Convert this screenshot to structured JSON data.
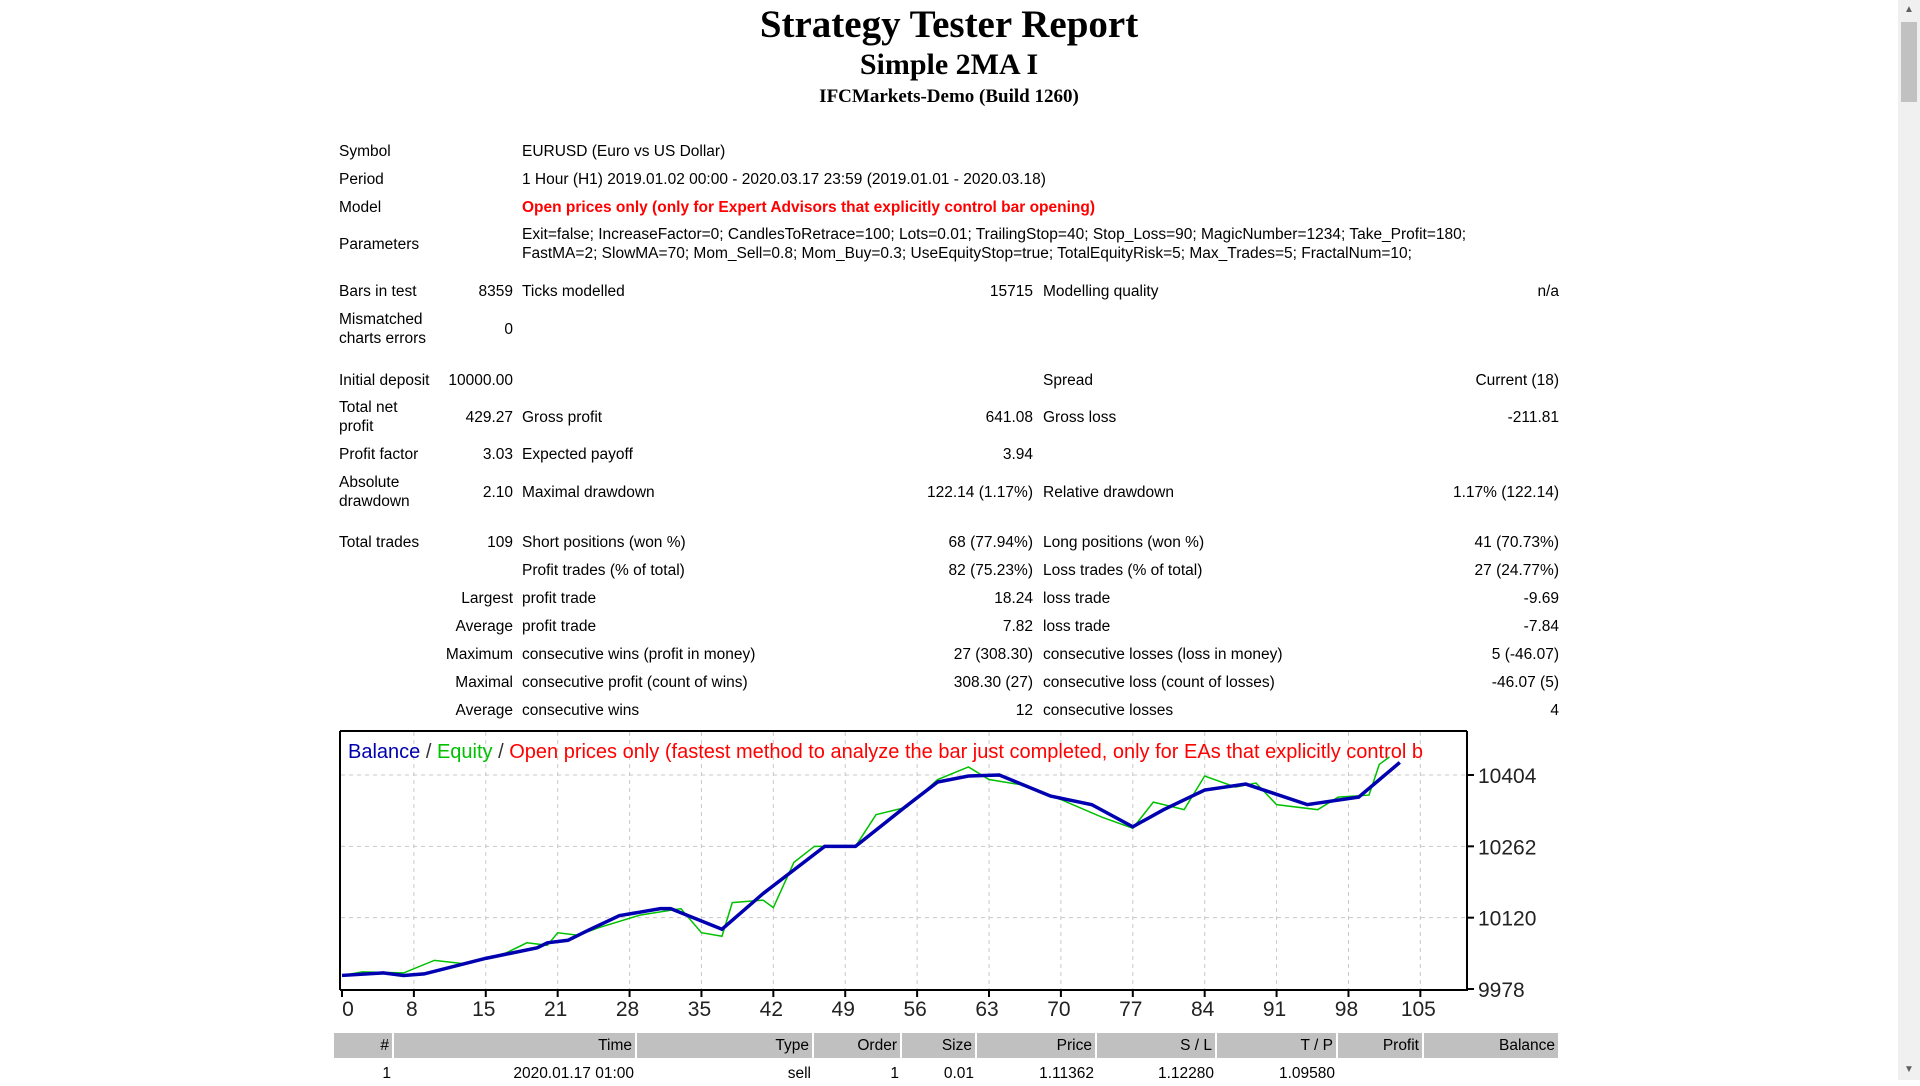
{
  "header": {
    "title": "Strategy Tester Report",
    "expert": "Simple 2MA I",
    "server": "IFCMarkets-Demo (Build 1260)"
  },
  "info": {
    "symbol_label": "Symbol",
    "symbol": "EURUSD (Euro vs US Dollar)",
    "period_label": "Period",
    "period": "1 Hour (H1) 2019.01.02 00:00 - 2020.03.17 23:59 (2019.01.01 - 2020.03.18)",
    "model_label": "Model",
    "model": "Open prices only (only for Expert Advisors that explicitly control bar opening)",
    "parameters_label": "Parameters",
    "parameters_line1": "Exit=false; IncreaseFactor=0; CandlesToRetrace=100; Lots=0.01; TrailingStop=40; Stop_Loss=90; MagicNumber=1234; Take_Profit=180;",
    "parameters_line2": "FastMA=2; SlowMA=70; Mom_Sell=0.8; Mom_Buy=0.3; UseEquityStop=true; TotalEquityRisk=5; Max_Trades=5; FractalNum=10;"
  },
  "stats": {
    "bars_label": "Bars in test",
    "bars": "8359",
    "ticks_label": "Ticks modelled",
    "ticks": "15715",
    "quality_label": "Modelling quality",
    "quality": "n/a",
    "mismatch_label1": "Mismatched",
    "mismatch_label2": "charts errors",
    "mismatch": "0",
    "deposit_label": "Initial deposit",
    "deposit": "10000.00",
    "spread_label": "Spread",
    "spread": "Current (18)",
    "net_label1": "Total net",
    "net_label2": "profit",
    "net": "429.27",
    "gross_profit_label": "Gross profit",
    "gross_profit": "641.08",
    "gross_loss_label": "Gross loss",
    "gross_loss": "-211.81",
    "pf_label": "Profit factor",
    "pf": "3.03",
    "payoff_label": "Expected payoff",
    "payoff": "3.94",
    "abs_dd_label1": "Absolute",
    "abs_dd_label2": "drawdown",
    "abs_dd": "2.10",
    "max_dd_label": "Maximal drawdown",
    "max_dd": "122.14 (1.17%)",
    "rel_dd_label": "Relative drawdown",
    "rel_dd": "1.17% (122.14)",
    "trades_label": "Total trades",
    "trades": "109",
    "short_label": "Short positions (won %)",
    "short": "68 (77.94%)",
    "long_label": "Long positions (won %)",
    "long": "41 (70.73%)",
    "profit_trades_label": "Profit trades (% of total)",
    "profit_trades": "82 (75.23%)",
    "loss_trades_label": "Loss trades (% of total)",
    "loss_trades": "27 (24.77%)",
    "largest_label": "Largest",
    "largest_profit_label": "profit trade",
    "largest_profit": "18.24",
    "largest_loss_label": "loss trade",
    "largest_loss": "-9.69",
    "average_label": "Average",
    "avg_profit_label": "profit trade",
    "avg_profit": "7.82",
    "avg_loss_label": "loss trade",
    "avg_loss": "-7.84",
    "maximum_label": "Maximum",
    "max_wins_label": "consecutive wins (profit in money)",
    "max_wins": "27 (308.30)",
    "max_losses_label": "consecutive losses (loss in money)",
    "max_losses": "5 (-46.07)",
    "maximal_label": "Maximal",
    "maximal_profit_label": "consecutive profit (count of wins)",
    "maximal_profit": "308.30 (27)",
    "maximal_loss_label": "consecutive loss (count of losses)",
    "maximal_loss": "-46.07 (5)",
    "average2_label": "Average",
    "avg_wins_label": "consecutive wins",
    "avg_wins": "12",
    "avg_losses_label": "consecutive losses",
    "avg_losses": "4"
  },
  "chart_data": {
    "type": "line",
    "legend": {
      "balance": "Balance",
      "sep": " / ",
      "equity": "Equity",
      "model": "Open prices only (fastest method to analyze the bar just completed, only for EAs that explicitly control b"
    },
    "colors": {
      "balance": "#0000b0",
      "equity": "#00c000",
      "model": "#ff0000",
      "grid": "#c8c8c8"
    },
    "x_ticks": [
      "0",
      "8",
      "15",
      "21",
      "28",
      "35",
      "42",
      "49",
      "56",
      "63",
      "70",
      "77",
      "84",
      "91",
      "98",
      "105"
    ],
    "y_ticks": [
      9978,
      10120,
      10262,
      10404
    ],
    "xlim": [
      0,
      109.5
    ],
    "ylim": [
      9978,
      10490
    ],
    "grid": true,
    "series": [
      {
        "name": "Balance",
        "points": [
          [
            0,
            10005
          ],
          [
            4,
            10010
          ],
          [
            6,
            10005
          ],
          [
            8,
            10008
          ],
          [
            14,
            10039
          ],
          [
            19,
            10060
          ],
          [
            20,
            10070
          ],
          [
            22,
            10075
          ],
          [
            24,
            10095
          ],
          [
            27,
            10124
          ],
          [
            31,
            10138
          ],
          [
            32,
            10138
          ],
          [
            37,
            10097
          ],
          [
            41,
            10168
          ],
          [
            47,
            10262
          ],
          [
            50,
            10262
          ],
          [
            55,
            10343
          ],
          [
            58,
            10390
          ],
          [
            61,
            10402
          ],
          [
            64,
            10404
          ],
          [
            69,
            10362
          ],
          [
            73,
            10345
          ],
          [
            77,
            10301
          ],
          [
            80,
            10335
          ],
          [
            84,
            10374
          ],
          [
            88,
            10386
          ],
          [
            94,
            10345
          ],
          [
            99,
            10360
          ],
          [
            103,
            10429
          ]
        ]
      },
      {
        "name": "Equity",
        "points": [
          [
            0,
            10005
          ],
          [
            2,
            10012
          ],
          [
            6,
            10010
          ],
          [
            9,
            10035
          ],
          [
            12,
            10028
          ],
          [
            16,
            10050
          ],
          [
            18,
            10070
          ],
          [
            20,
            10065
          ],
          [
            21,
            10090
          ],
          [
            23,
            10085
          ],
          [
            25,
            10100
          ],
          [
            29,
            10125
          ],
          [
            33,
            10138
          ],
          [
            35,
            10090
          ],
          [
            37,
            10083
          ],
          [
            38,
            10150
          ],
          [
            41,
            10155
          ],
          [
            42,
            10140
          ],
          [
            44,
            10230
          ],
          [
            46,
            10262
          ],
          [
            50,
            10262
          ],
          [
            52,
            10325
          ],
          [
            55,
            10340
          ],
          [
            58,
            10395
          ],
          [
            61,
            10420
          ],
          [
            63,
            10395
          ],
          [
            66,
            10385
          ],
          [
            70,
            10355
          ],
          [
            74,
            10320
          ],
          [
            77,
            10298
          ],
          [
            79,
            10350
          ],
          [
            82,
            10335
          ],
          [
            84,
            10402
          ],
          [
            87,
            10380
          ],
          [
            89,
            10388
          ],
          [
            91,
            10345
          ],
          [
            95,
            10335
          ],
          [
            97,
            10360
          ],
          [
            100,
            10364
          ],
          [
            101,
            10425
          ],
          [
            102,
            10440
          ]
        ]
      }
    ]
  },
  "trades_table": {
    "columns": [
      "#",
      "Time",
      "Type",
      "Order",
      "Size",
      "Price",
      "S / L",
      "T / P",
      "Profit",
      "Balance"
    ],
    "rows": [
      [
        "1",
        "2020.01.17 01:00",
        "sell",
        "1",
        "0.01",
        "1.11362",
        "1.12280",
        "1.09580",
        "",
        ""
      ]
    ]
  }
}
